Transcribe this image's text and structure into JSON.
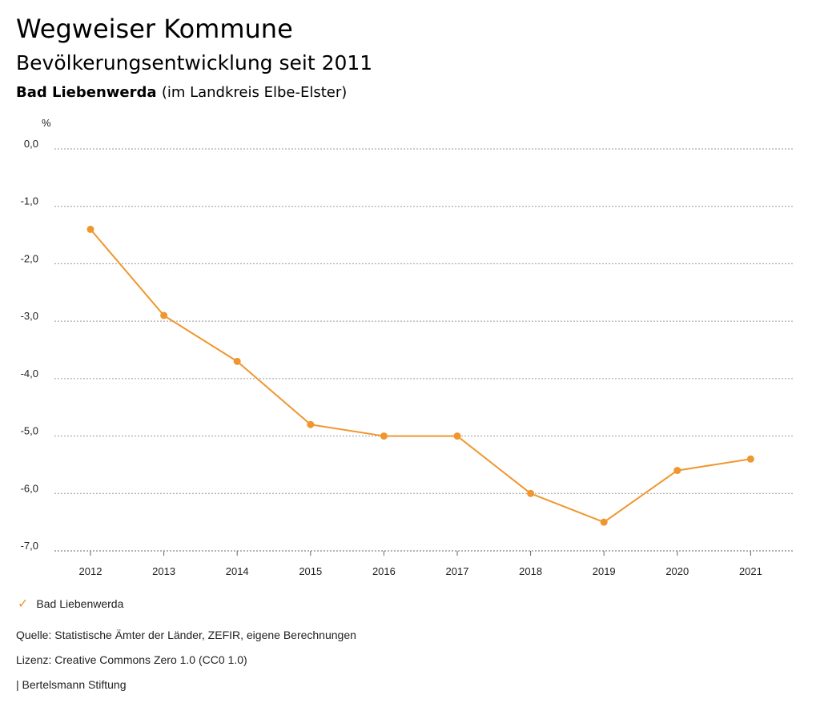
{
  "header": {
    "title": "Wegweiser Kommune",
    "subtitle": "Bevölkerungsentwicklung seit 2011",
    "region_name": "Bad Liebenwerda",
    "region_suffix": "(im Landkreis Elbe-Elster)"
  },
  "legend": {
    "label": "Bad Liebenwerda",
    "marker": "check-icon"
  },
  "footer": {
    "source": "Quelle: Statistische Ämter der Länder, ZEFIR, eigene Berechnungen",
    "license": "Lizenz: Creative Commons Zero 1.0 (CC0 1.0)",
    "brand": "| Bertelsmann Stiftung"
  },
  "colors": {
    "series": "#F0962E",
    "grid": "#9a9a9a",
    "text": "#222222"
  },
  "chart_data": {
    "type": "line",
    "title": "Bevölkerungsentwicklung seit 2011",
    "unit_label": "%",
    "x": [
      "2012",
      "2013",
      "2014",
      "2015",
      "2016",
      "2017",
      "2018",
      "2019",
      "2020",
      "2021"
    ],
    "y_ticks": [
      "0,0",
      "-1,0",
      "-2,0",
      "-3,0",
      "-4,0",
      "-5,0",
      "-6,0",
      "-7,0"
    ],
    "ylim": [
      -7,
      0
    ],
    "grid": true,
    "legend_position": "bottom-left",
    "series": [
      {
        "name": "Bad Liebenwerda",
        "values": [
          -1.4,
          -2.9,
          -3.7,
          -4.8,
          -5.0,
          -5.0,
          -6.0,
          -6.5,
          -5.6,
          -5.4
        ]
      }
    ]
  }
}
